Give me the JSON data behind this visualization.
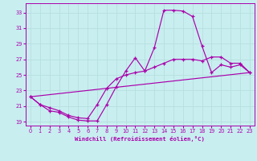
{
  "xlabel": "Windchill (Refroidissement éolien,°C)",
  "bg_color": "#c8eef0",
  "line_color": "#aa00aa",
  "grid_color": "#b8dfe0",
  "xlim": [
    -0.5,
    23.5
  ],
  "ylim": [
    18.5,
    34.2
  ],
  "yticks": [
    19,
    21,
    23,
    25,
    27,
    29,
    31,
    33
  ],
  "xticks": [
    0,
    1,
    2,
    3,
    4,
    5,
    6,
    7,
    8,
    9,
    10,
    11,
    12,
    13,
    14,
    15,
    16,
    17,
    18,
    19,
    20,
    21,
    22,
    23
  ],
  "line1_x": [
    0,
    1,
    2,
    3,
    4,
    5,
    6,
    7,
    8,
    9,
    10,
    11,
    12,
    13,
    14,
    15,
    16,
    17,
    18,
    19,
    20,
    21,
    22,
    23
  ],
  "line1_y": [
    22.2,
    21.2,
    20.4,
    20.2,
    19.6,
    19.2,
    19.1,
    19.1,
    21.2,
    23.5,
    25.5,
    27.2,
    25.5,
    28.5,
    33.3,
    33.3,
    33.2,
    32.5,
    28.7,
    25.3,
    26.3,
    26.0,
    26.3,
    25.3
  ],
  "line2_x": [
    0,
    1,
    2,
    3,
    4,
    5,
    6,
    7,
    8,
    9,
    10,
    11,
    12,
    13,
    14,
    15,
    16,
    17,
    18,
    19,
    20,
    21,
    22,
    23
  ],
  "line2_y": [
    22.2,
    21.2,
    20.8,
    20.4,
    19.8,
    19.5,
    19.4,
    21.2,
    23.3,
    24.5,
    25.0,
    25.3,
    25.5,
    26.0,
    26.5,
    27.0,
    27.0,
    27.0,
    26.8,
    27.3,
    27.3,
    26.5,
    26.5,
    25.3
  ],
  "line3_x": [
    0,
    23
  ],
  "line3_y": [
    22.2,
    25.3
  ]
}
